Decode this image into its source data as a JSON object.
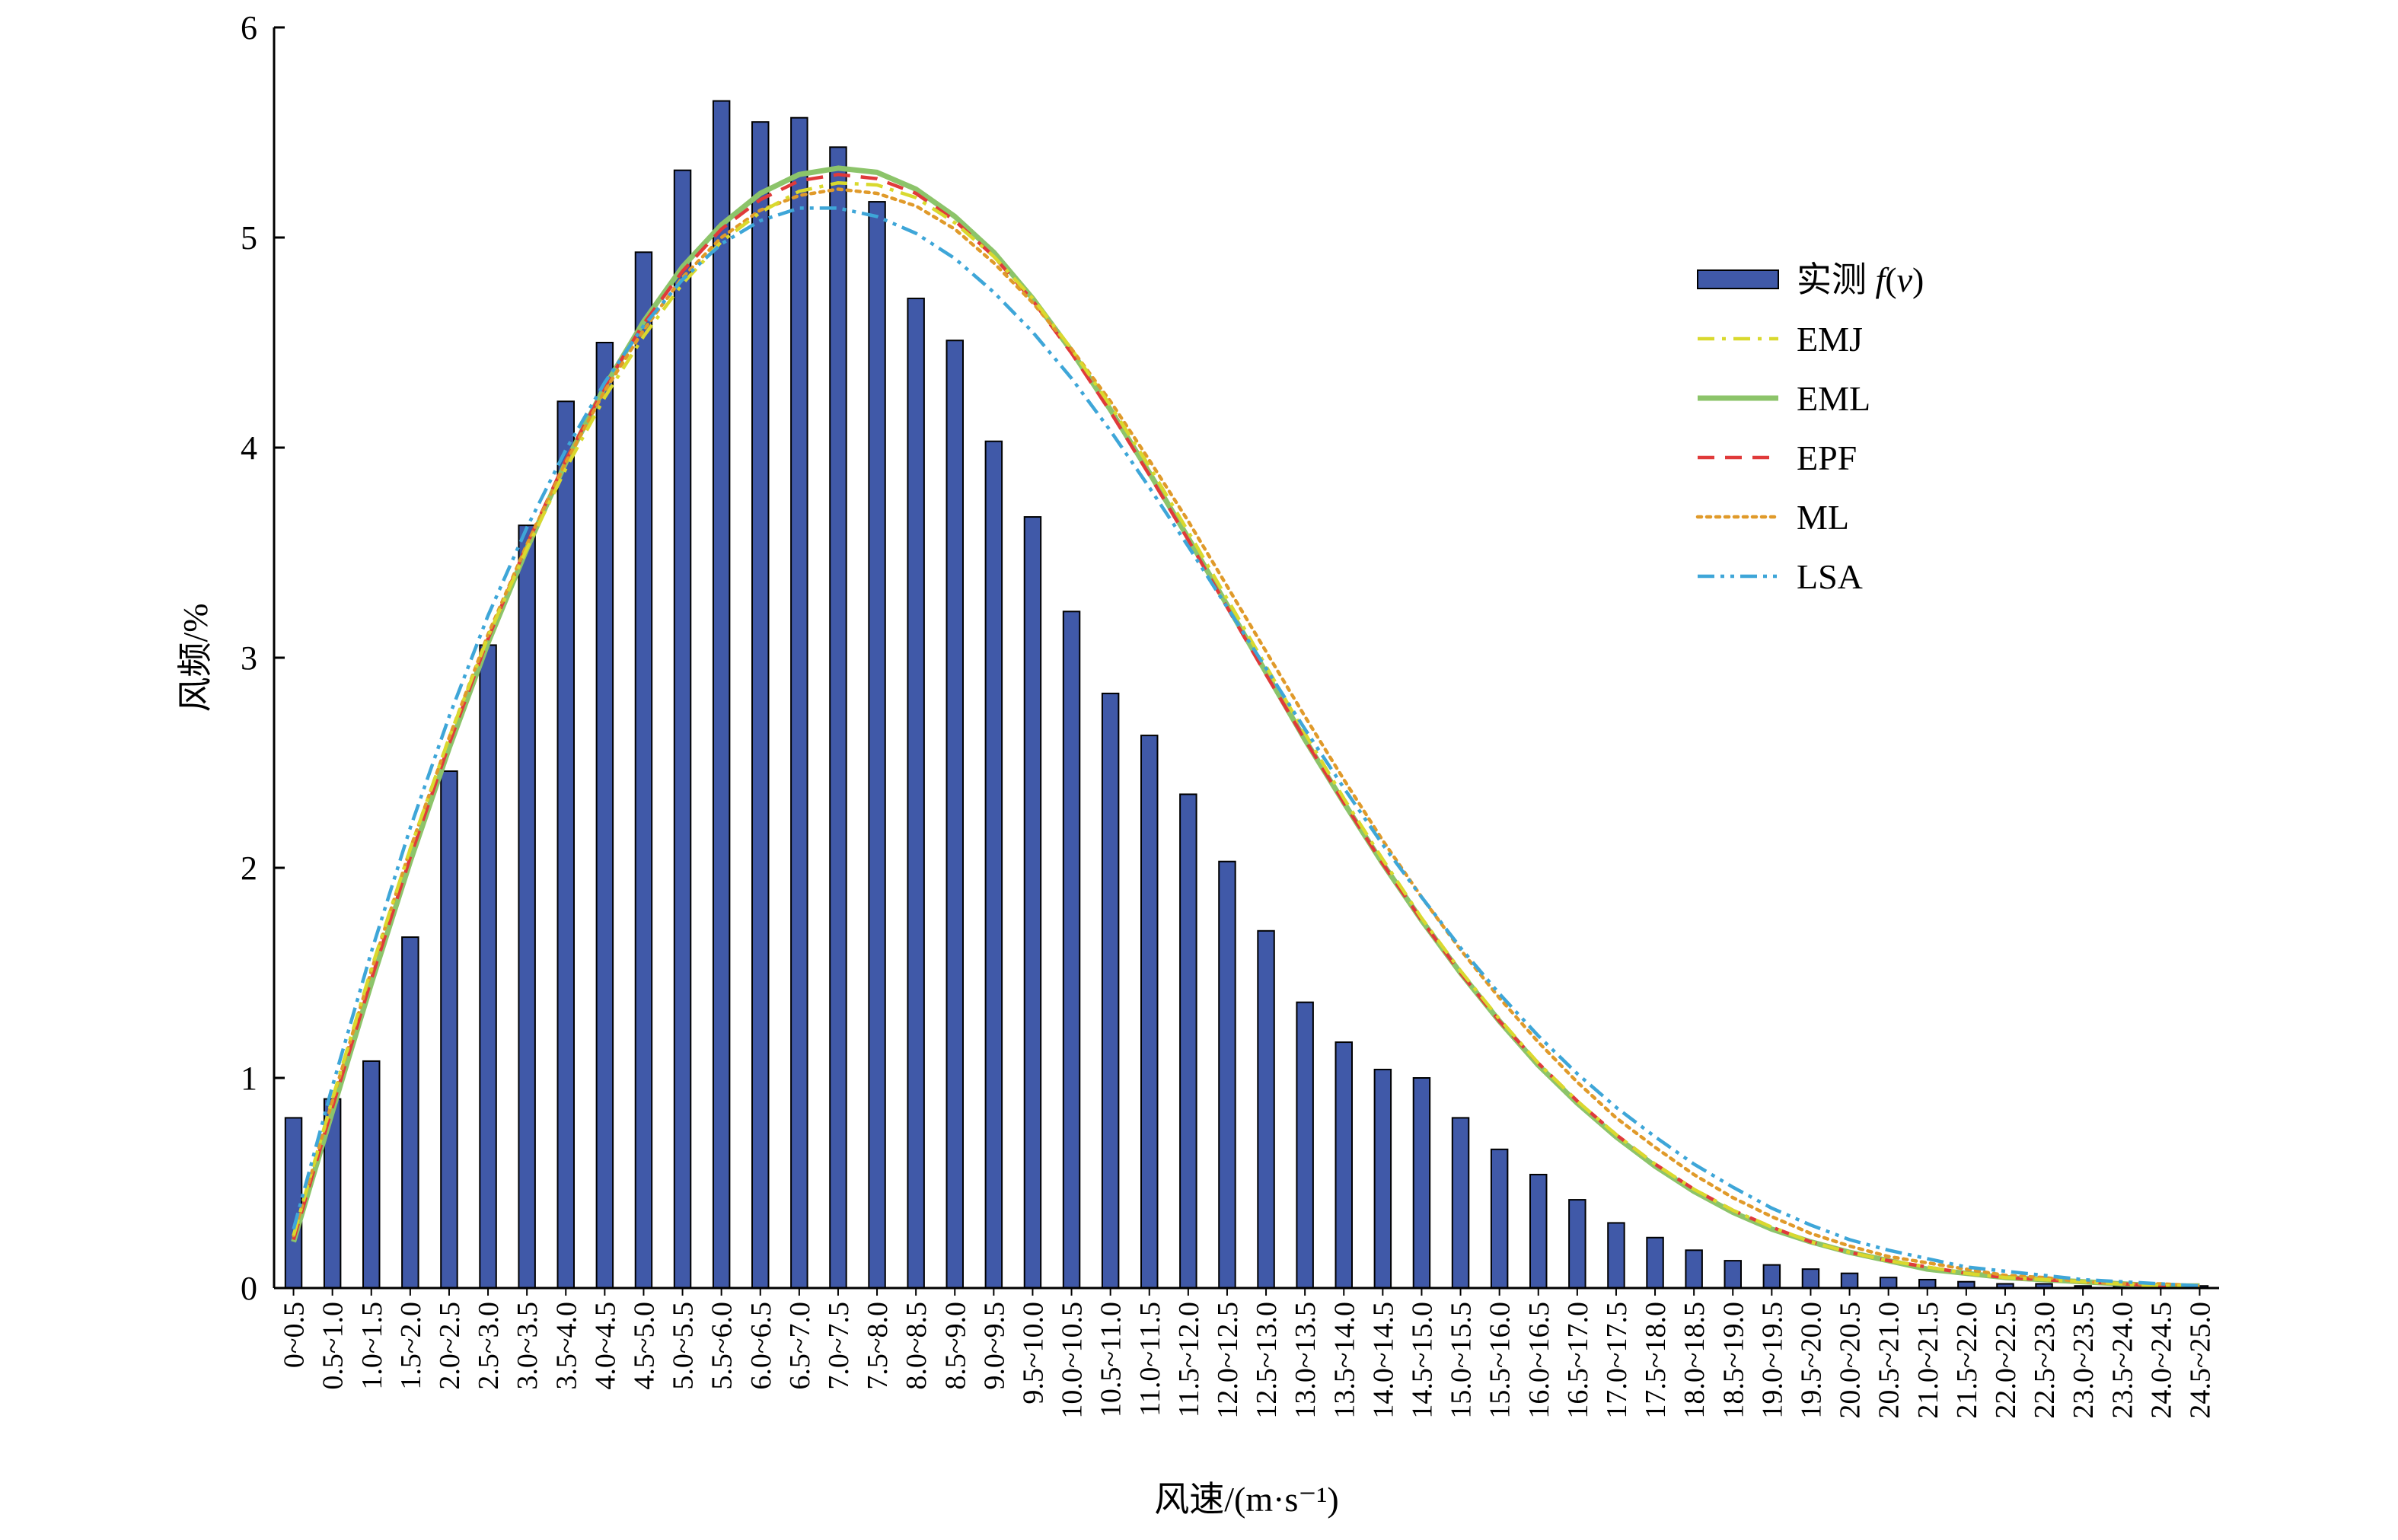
{
  "chart_data": {
    "type": "bar",
    "title": "",
    "xlabel": "风速/(m·s⁻¹)",
    "ylabel": "风频/%",
    "ylim": [
      0,
      6
    ],
    "yticks": [
      0,
      1,
      2,
      3,
      4,
      5,
      6
    ],
    "grid": false,
    "legend_position": "top-right",
    "categories": [
      "0~0.5",
      "0.5~1.0",
      "1.0~1.5",
      "1.5~2.0",
      "2.0~2.5",
      "2.5~3.0",
      "3.0~3.5",
      "3.5~4.0",
      "4.0~4.5",
      "4.5~5.0",
      "5.0~5.5",
      "5.5~6.0",
      "6.0~6.5",
      "6.5~7.0",
      "7.0~7.5",
      "7.5~8.0",
      "8.0~8.5",
      "8.5~9.0",
      "9.0~9.5",
      "9.5~10.0",
      "10.0~10.5",
      "10.5~11.0",
      "11.0~11.5",
      "11.5~12.0",
      "12.0~12.5",
      "12.5~13.0",
      "13.0~13.5",
      "13.5~14.0",
      "14.0~14.5",
      "14.5~15.0",
      "15.0~15.5",
      "15.5~16.0",
      "16.0~16.5",
      "16.5~17.0",
      "17.0~17.5",
      "17.5~18.0",
      "18.0~18.5",
      "18.5~19.0",
      "19.0~19.5",
      "19.5~20.0",
      "20.0~20.5",
      "20.5~21.0",
      "21.0~21.5",
      "21.5~22.0",
      "22.0~22.5",
      "22.5~23.0",
      "23.0~23.5",
      "23.5~24.0",
      "24.0~24.5",
      "24.5~25.0"
    ],
    "bars": {
      "name": "实测 f(v)",
      "name_plain": "实测 ",
      "name_italic": "f",
      "name_paren_open": "(",
      "name_var": "v",
      "name_paren_close": ")",
      "color": "#4059a8",
      "values": [
        0.81,
        0.9,
        1.08,
        1.67,
        2.46,
        3.06,
        3.63,
        4.22,
        4.5,
        4.93,
        5.32,
        5.65,
        5.55,
        5.57,
        5.43,
        5.17,
        4.71,
        4.51,
        4.03,
        3.67,
        3.22,
        2.83,
        2.63,
        2.35,
        2.03,
        1.7,
        1.36,
        1.17,
        1.04,
        1.0,
        0.81,
        0.66,
        0.54,
        0.42,
        0.31,
        0.24,
        0.18,
        0.13,
        0.11,
        0.09,
        0.07,
        0.05,
        0.04,
        0.03,
        0.02,
        0.02,
        0.01,
        0.01,
        0.01,
        0.01
      ]
    },
    "series": [
      {
        "name": "EMJ",
        "color": "#d9d92e",
        "style": "dash-dot",
        "values": [
          0.25,
          0.9,
          1.52,
          2.09,
          2.62,
          3.1,
          3.52,
          3.9,
          4.24,
          4.53,
          4.78,
          4.98,
          5.12,
          5.22,
          5.26,
          5.25,
          5.19,
          5.07,
          4.91,
          4.71,
          4.47,
          4.2,
          3.91,
          3.6,
          3.28,
          2.96,
          2.64,
          2.33,
          2.04,
          1.76,
          1.51,
          1.28,
          1.07,
          0.89,
          0.73,
          0.59,
          0.47,
          0.37,
          0.29,
          0.22,
          0.17,
          0.13,
          0.1,
          0.07,
          0.05,
          0.04,
          0.03,
          0.02,
          0.01,
          0.01
        ]
      },
      {
        "name": "EML",
        "color": "#8cc46a",
        "style": "solid",
        "values": [
          0.22,
          0.84,
          1.45,
          2.03,
          2.57,
          3.07,
          3.52,
          3.93,
          4.29,
          4.6,
          4.86,
          5.06,
          5.21,
          5.3,
          5.33,
          5.31,
          5.23,
          5.1,
          4.93,
          4.71,
          4.46,
          4.18,
          3.88,
          3.57,
          3.25,
          2.93,
          2.61,
          2.31,
          2.02,
          1.75,
          1.5,
          1.27,
          1.06,
          0.88,
          0.72,
          0.58,
          0.46,
          0.36,
          0.28,
          0.22,
          0.17,
          0.13,
          0.09,
          0.07,
          0.05,
          0.04,
          0.03,
          0.02,
          0.01,
          0.01
        ]
      },
      {
        "name": "EPF",
        "color": "#e03a3a",
        "style": "dashed",
        "values": [
          0.23,
          0.86,
          1.47,
          2.05,
          2.59,
          3.09,
          3.54,
          3.94,
          4.29,
          4.59,
          4.84,
          5.04,
          5.18,
          5.27,
          5.3,
          5.28,
          5.21,
          5.08,
          4.91,
          4.7,
          4.45,
          4.17,
          3.87,
          3.56,
          3.24,
          2.92,
          2.61,
          2.31,
          2.02,
          1.75,
          1.5,
          1.27,
          1.07,
          0.89,
          0.73,
          0.59,
          0.47,
          0.37,
          0.29,
          0.22,
          0.17,
          0.13,
          0.1,
          0.07,
          0.05,
          0.04,
          0.03,
          0.02,
          0.01,
          0.01
        ]
      },
      {
        "name": "ML",
        "color": "#e09a2a",
        "style": "dotted",
        "values": [
          0.25,
          0.89,
          1.51,
          2.09,
          2.62,
          3.11,
          3.54,
          3.93,
          4.27,
          4.56,
          4.81,
          5.0,
          5.13,
          5.2,
          5.23,
          5.21,
          5.15,
          5.04,
          4.88,
          4.69,
          4.47,
          4.22,
          3.94,
          3.65,
          3.34,
          3.03,
          2.72,
          2.42,
          2.13,
          1.86,
          1.61,
          1.38,
          1.17,
          0.98,
          0.81,
          0.67,
          0.54,
          0.43,
          0.34,
          0.26,
          0.2,
          0.15,
          0.12,
          0.09,
          0.06,
          0.05,
          0.03,
          0.02,
          0.02,
          0.01
        ]
      },
      {
        "name": "LSA",
        "color": "#3ea6d8",
        "style": "dash-dot-dot",
        "values": [
          0.28,
          0.96,
          1.6,
          2.19,
          2.72,
          3.2,
          3.62,
          3.99,
          4.31,
          4.58,
          4.8,
          4.97,
          5.08,
          5.14,
          5.14,
          5.1,
          5.02,
          4.9,
          4.74,
          4.55,
          4.33,
          4.08,
          3.81,
          3.53,
          3.24,
          2.95,
          2.66,
          2.38,
          2.11,
          1.86,
          1.62,
          1.4,
          1.2,
          1.02,
          0.86,
          0.72,
          0.59,
          0.48,
          0.38,
          0.3,
          0.23,
          0.18,
          0.14,
          0.1,
          0.08,
          0.06,
          0.04,
          0.03,
          0.02,
          0.01
        ]
      }
    ]
  }
}
